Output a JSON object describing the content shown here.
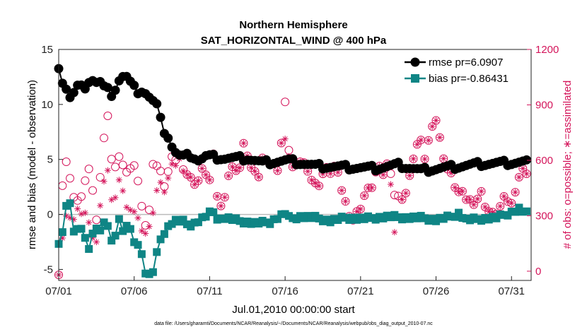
{
  "chart_data": {
    "type": "line",
    "title": "Northern Hemisphere",
    "subtitle": "SAT_HORIZONTAL_WIND @ 400 hPa",
    "xlabel": "Jul.01,2010 00:00:00 start",
    "ylabel": "rmse and bias (model - observation)",
    "ylabel_right": "# of obs: o=possible; ∗=assimilated",
    "footer": "data file: /Users/gharamti/Documents/NCAR/Reanalysis/~/Documents/NCAR/Reanalysis/webpub/obs_diag_output_2010-07.nc",
    "xlim": [
      0,
      31.3
    ],
    "ylim": [
      -6,
      15
    ],
    "ylim_right": [
      -50,
      1200
    ],
    "x_ticks": [
      0,
      5,
      10,
      15,
      20,
      25,
      30
    ],
    "x_tick_labels": [
      "07/01",
      "07/06",
      "07/11",
      "07/16",
      "07/21",
      "07/26",
      "07/31"
    ],
    "y_ticks": [
      -5,
      0,
      5,
      10,
      15
    ],
    "y_right_ticks": [
      0,
      300,
      600,
      900,
      1200
    ],
    "legend": [
      "rmse pr=6.0907",
      "bias pr=-0.86431"
    ],
    "legend_position": "top-right",
    "colors": {
      "rmse": "#000000",
      "bias": "#0f8585",
      "obs": "#d4145a",
      "zero_line": "#bbbbbb"
    },
    "rmse_knots": [
      [
        0,
        13.5
      ],
      [
        0.3,
        11.8
      ],
      [
        0.6,
        11.3
      ],
      [
        0.8,
        10.4
      ],
      [
        1.2,
        11.6
      ],
      [
        1.6,
        11.5
      ],
      [
        1.9,
        11.8
      ],
      [
        2.1,
        12.5
      ],
      [
        2.4,
        12.0
      ],
      [
        2.8,
        12.0
      ],
      [
        3.1,
        11.3
      ],
      [
        3.3,
        11.3
      ],
      [
        3.6,
        10.8
      ],
      [
        3.9,
        12.1
      ],
      [
        4.3,
        12.6
      ],
      [
        4.6,
        12.4
      ],
      [
        4.8,
        11.8
      ],
      [
        5.2,
        11.2
      ],
      [
        5.6,
        11.3
      ],
      [
        6.1,
        10.5
      ],
      [
        6.5,
        9.9
      ],
      [
        6.9,
        7.8
      ],
      [
        7.3,
        7.0
      ],
      [
        7.6,
        5.8
      ],
      [
        8.1,
        5.2
      ],
      [
        8.8,
        5.4
      ],
      [
        9.3,
        4.9
      ],
      [
        9.8,
        5.3
      ],
      [
        11.0,
        5.1
      ],
      [
        12.5,
        5.1
      ],
      [
        13.5,
        4.7
      ],
      [
        15.2,
        4.9
      ],
      [
        16.0,
        4.7
      ],
      [
        17.0,
        4.4
      ],
      [
        19.0,
        4.3
      ],
      [
        21.0,
        4.2
      ],
      [
        22.5,
        4.5
      ],
      [
        24.0,
        4.0
      ],
      [
        26.0,
        4.3
      ],
      [
        28.0,
        4.6
      ],
      [
        30.0,
        4.7
      ],
      [
        31.0,
        4.8
      ]
    ],
    "bias_knots": [
      [
        0,
        -2.5
      ],
      [
        0.3,
        -1.5
      ],
      [
        0.5,
        0.9
      ],
      [
        0.8,
        0.9
      ],
      [
        0.9,
        -1.5
      ],
      [
        1.3,
        -1.5
      ],
      [
        1.6,
        -1.2
      ],
      [
        2.0,
        -3.2
      ],
      [
        2.3,
        -1.3
      ],
      [
        2.7,
        -1.5
      ],
      [
        3.1,
        -0.7
      ],
      [
        3.4,
        -1.4
      ],
      [
        3.6,
        -3.0
      ],
      [
        4.0,
        -0.3
      ],
      [
        4.3,
        -1.9
      ],
      [
        4.6,
        -0.5
      ],
      [
        4.9,
        -2.5
      ],
      [
        5.3,
        -2.6
      ],
      [
        5.6,
        -4.2
      ],
      [
        5.8,
        -5.6
      ],
      [
        6.2,
        -5.5
      ],
      [
        6.5,
        -3.6
      ],
      [
        6.8,
        -2.0
      ],
      [
        7.2,
        -1.2
      ],
      [
        7.6,
        -0.6
      ],
      [
        8.2,
        -0.6
      ],
      [
        8.6,
        -1.0
      ],
      [
        9.0,
        -0.8
      ],
      [
        9.6,
        -0.3
      ],
      [
        10.2,
        0.3
      ],
      [
        10.6,
        -0.5
      ],
      [
        11.0,
        -0.3
      ],
      [
        12.0,
        -0.6
      ],
      [
        13.0,
        -0.8
      ],
      [
        14.0,
        -0.7
      ],
      [
        15.0,
        0.1
      ],
      [
        15.3,
        -0.4
      ],
      [
        16.0,
        -0.2
      ],
      [
        17.0,
        -0.3
      ],
      [
        18.0,
        -0.6
      ],
      [
        19.0,
        -0.3
      ],
      [
        20.0,
        -0.4
      ],
      [
        21.0,
        -0.3
      ],
      [
        22.0,
        -0.2
      ],
      [
        23.0,
        -0.3
      ],
      [
        24.0,
        -0.3
      ],
      [
        25.0,
        -0.5
      ],
      [
        26.0,
        -0.2
      ],
      [
        26.5,
        0.1
      ],
      [
        27.0,
        -0.5
      ],
      [
        28.0,
        -0.4
      ],
      [
        29.0,
        -0.3
      ],
      [
        30.0,
        0.2
      ],
      [
        30.5,
        0.5
      ],
      [
        31.0,
        0.1
      ]
    ],
    "obs_possible_knots": [
      [
        0,
        0
      ],
      [
        0.3,
        560
      ],
      [
        0.6,
        590
      ],
      [
        1.0,
        400
      ],
      [
        1.3,
        360
      ],
      [
        1.8,
        500
      ],
      [
        2.1,
        550
      ],
      [
        2.5,
        270
      ],
      [
        2.8,
        580
      ],
      [
        3.2,
        870
      ],
      [
        3.6,
        540
      ],
      [
        4.1,
        620
      ],
      [
        4.6,
        510
      ],
      [
        5.0,
        580
      ],
      [
        5.4,
        420
      ],
      [
        5.9,
        180
      ],
      [
        6.2,
        600
      ],
      [
        6.6,
        560
      ],
      [
        7.0,
        470
      ],
      [
        7.5,
        600
      ],
      [
        8.0,
        620
      ],
      [
        8.4,
        540
      ],
      [
        8.8,
        490
      ],
      [
        9.2,
        480
      ],
      [
        9.6,
        560
      ],
      [
        10.0,
        490
      ],
      [
        10.3,
        640
      ],
      [
        10.6,
        300
      ],
      [
        11.0,
        420
      ],
      [
        11.3,
        540
      ],
      [
        11.6,
        560
      ],
      [
        12.0,
        560
      ],
      [
        12.3,
        700
      ],
      [
        12.8,
        540
      ],
      [
        13.2,
        500
      ],
      [
        13.6,
        640
      ],
      [
        14.0,
        580
      ],
      [
        14.5,
        560
      ],
      [
        14.8,
        720
      ],
      [
        15.0,
        900
      ],
      [
        15.3,
        620
      ],
      [
        15.6,
        530
      ],
      [
        16.0,
        600
      ],
      [
        16.5,
        560
      ],
      [
        16.9,
        460
      ],
      [
        17.3,
        480
      ],
      [
        17.6,
        550
      ],
      [
        18.0,
        540
      ],
      [
        18.3,
        570
      ],
      [
        18.7,
        460
      ],
      [
        19.1,
        340
      ],
      [
        19.5,
        280
      ],
      [
        19.9,
        330
      ],
      [
        20.3,
        420
      ],
      [
        20.7,
        450
      ],
      [
        21.1,
        560
      ],
      [
        21.5,
        530
      ],
      [
        21.9,
        600
      ],
      [
        22.3,
        390
      ],
      [
        22.7,
        400
      ],
      [
        23.1,
        430
      ],
      [
        23.5,
        620
      ],
      [
        23.9,
        720
      ],
      [
        24.3,
        600
      ],
      [
        24.7,
        800
      ],
      [
        25.0,
        820
      ],
      [
        25.3,
        690
      ],
      [
        25.7,
        560
      ],
      [
        26.1,
        500
      ],
      [
        26.4,
        430
      ],
      [
        26.8,
        410
      ],
      [
        27.2,
        380
      ],
      [
        27.6,
        380
      ],
      [
        28.0,
        420
      ],
      [
        28.4,
        330
      ],
      [
        28.8,
        300
      ],
      [
        29.2,
        340
      ],
      [
        29.6,
        400
      ],
      [
        30.0,
        360
      ],
      [
        30.4,
        500
      ],
      [
        30.8,
        550
      ],
      [
        31.1,
        540
      ]
    ],
    "obs_assimilated_knots": [
      [
        0,
        0
      ],
      [
        0.3,
        220
      ],
      [
        0.6,
        320
      ],
      [
        1.0,
        280
      ],
      [
        1.3,
        330
      ],
      [
        1.8,
        310
      ],
      [
        2.1,
        210
      ],
      [
        2.5,
        150
      ],
      [
        2.8,
        420
      ],
      [
        3.2,
        560
      ],
      [
        3.6,
        350
      ],
      [
        4.1,
        510
      ],
      [
        4.6,
        300
      ],
      [
        5.0,
        330
      ],
      [
        5.4,
        250
      ],
      [
        5.9,
        190
      ],
      [
        6.2,
        310
      ],
      [
        6.6,
        480
      ],
      [
        7.0,
        440
      ],
      [
        7.5,
        560
      ],
      [
        8.0,
        600
      ],
      [
        8.4,
        540
      ],
      [
        8.8,
        490
      ],
      [
        9.2,
        480
      ],
      [
        9.6,
        560
      ],
      [
        10.0,
        490
      ],
      [
        10.3,
        640
      ],
      [
        10.6,
        300
      ],
      [
        11.0,
        420
      ],
      [
        11.3,
        540
      ],
      [
        11.6,
        560
      ],
      [
        12.0,
        560
      ],
      [
        12.3,
        700
      ],
      [
        12.8,
        540
      ],
      [
        13.2,
        500
      ],
      [
        13.6,
        640
      ],
      [
        14.0,
        580
      ],
      [
        14.5,
        560
      ],
      [
        14.8,
        720
      ],
      [
        15.0,
        700
      ],
      [
        15.3,
        620
      ],
      [
        15.6,
        530
      ],
      [
        16.0,
        600
      ],
      [
        16.5,
        560
      ],
      [
        16.9,
        460
      ],
      [
        17.3,
        480
      ],
      [
        17.6,
        550
      ],
      [
        18.0,
        540
      ],
      [
        18.3,
        570
      ],
      [
        18.7,
        460
      ],
      [
        19.1,
        340
      ],
      [
        19.5,
        280
      ],
      [
        19.9,
        330
      ],
      [
        20.3,
        420
      ],
      [
        20.7,
        450
      ],
      [
        21.1,
        560
      ],
      [
        21.5,
        530
      ],
      [
        21.9,
        600
      ],
      [
        22.3,
        160
      ],
      [
        22.7,
        400
      ],
      [
        23.1,
        430
      ],
      [
        23.5,
        620
      ],
      [
        23.9,
        720
      ],
      [
        24.3,
        600
      ],
      [
        24.7,
        800
      ],
      [
        25.0,
        820
      ],
      [
        25.3,
        690
      ],
      [
        25.7,
        560
      ],
      [
        26.1,
        500
      ],
      [
        26.4,
        430
      ],
      [
        26.8,
        410
      ],
      [
        27.2,
        380
      ],
      [
        27.6,
        380
      ],
      [
        28.0,
        420
      ],
      [
        28.4,
        330
      ],
      [
        28.8,
        300
      ],
      [
        29.2,
        340
      ],
      [
        29.6,
        400
      ],
      [
        30.0,
        360
      ],
      [
        30.4,
        500
      ],
      [
        30.8,
        550
      ],
      [
        31.1,
        540
      ]
    ]
  }
}
